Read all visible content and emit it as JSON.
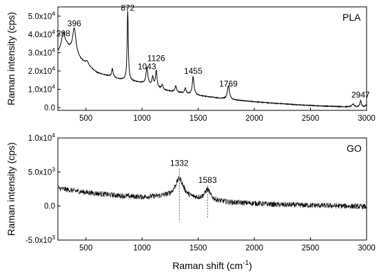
{
  "chart_data": [
    {
      "type": "line",
      "panel_label": "PLA",
      "xlabel": "",
      "ylabel": "Raman intensity (cps)",
      "xlim": [
        250,
        3000
      ],
      "ylim": [
        -1500,
        55000
      ],
      "x_ticks": [
        {
          "value": 500,
          "label": "500"
        },
        {
          "value": 1000,
          "label": "1000"
        },
        {
          "value": 1500,
          "label": "1500"
        },
        {
          "value": 2000,
          "label": "2000"
        },
        {
          "value": 2500,
          "label": "2500"
        },
        {
          "value": 3000,
          "label": "3000"
        }
      ],
      "y_ticks": [
        {
          "value": 0,
          "mant": "0.0",
          "exp": ""
        },
        {
          "value": 10000,
          "mant": "1.0x10",
          "exp": "4"
        },
        {
          "value": 20000,
          "mant": "2.0x10",
          "exp": "4"
        },
        {
          "value": 30000,
          "mant": "3.0x10",
          "exp": "4"
        },
        {
          "value": 40000,
          "mant": "4.0x10",
          "exp": "4"
        },
        {
          "value": 50000,
          "mant": "5.0x10",
          "exp": "4"
        }
      ],
      "baseline": [
        [
          250,
          30000
        ],
        [
          330,
          33000
        ],
        [
          450,
          26000
        ],
        [
          600,
          19000
        ],
        [
          800,
          15500
        ],
        [
          1000,
          13500
        ],
        [
          1200,
          9500
        ],
        [
          1400,
          7500
        ],
        [
          1600,
          5800
        ],
        [
          1800,
          4300
        ],
        [
          2000,
          3200
        ],
        [
          2200,
          2300
        ],
        [
          2400,
          1500
        ],
        [
          2600,
          900
        ],
        [
          2800,
          500
        ],
        [
          3000,
          200
        ]
      ],
      "peaks": [
        {
          "x": 298,
          "h": 9000,
          "w": 18
        },
        {
          "x": 396,
          "h": 14000,
          "w": 18
        },
        {
          "x": 510,
          "h": 2000,
          "w": 15
        },
        {
          "x": 735,
          "h": 4500,
          "w": 8
        },
        {
          "x": 872,
          "h": 38000,
          "w": 6
        },
        {
          "x": 1043,
          "h": 9000,
          "w": 10
        },
        {
          "x": 1095,
          "h": 5000,
          "w": 8
        },
        {
          "x": 1126,
          "h": 9000,
          "w": 8
        },
        {
          "x": 1180,
          "h": 2500,
          "w": 8
        },
        {
          "x": 1300,
          "h": 3500,
          "w": 8
        },
        {
          "x": 1385,
          "h": 3000,
          "w": 8
        },
        {
          "x": 1455,
          "h": 10000,
          "w": 9
        },
        {
          "x": 1769,
          "h": 7500,
          "w": 11
        },
        {
          "x": 2880,
          "h": 1500,
          "w": 12
        },
        {
          "x": 2947,
          "h": 3500,
          "w": 8
        },
        {
          "x": 3000,
          "h": 1500,
          "w": 10
        }
      ],
      "annotations": [
        {
          "label": "298",
          "x": 298,
          "y": 39000
        },
        {
          "label": "396",
          "x": 396,
          "y": 44500
        },
        {
          "label": "872",
          "x": 872,
          "y": 53000
        },
        {
          "label": "1043",
          "x": 1043,
          "y": 21000
        },
        {
          "label": "1126",
          "x": 1126,
          "y": 25500
        },
        {
          "label": "1455",
          "x": 1455,
          "y": 18500
        },
        {
          "label": "1769",
          "x": 1769,
          "y": 11500
        },
        {
          "label": "2947",
          "x": 2947,
          "y": 5500
        }
      ]
    },
    {
      "type": "line",
      "panel_label": "GO",
      "xlabel": "Raman shift (cm",
      "xlabel_sup": "-1",
      "xlabel_end": ")",
      "ylabel": "Raman intensity (cps)",
      "xlim": [
        250,
        3000
      ],
      "ylim": [
        -5000,
        10000
      ],
      "x_ticks": [
        {
          "value": 500,
          "label": "500"
        },
        {
          "value": 1000,
          "label": "1000"
        },
        {
          "value": 1500,
          "label": "1500"
        },
        {
          "value": 2000,
          "label": "2000"
        },
        {
          "value": 2500,
          "label": "2500"
        },
        {
          "value": 3000,
          "label": "3000"
        }
      ],
      "y_ticks": [
        {
          "value": -5000,
          "mant": "-5.0x10",
          "exp": "3"
        },
        {
          "value": 0,
          "mant": "0.0",
          "exp": ""
        },
        {
          "value": 5000,
          "mant": "5.0x10",
          "exp": "3"
        },
        {
          "value": 10000,
          "mant": "1.0x10",
          "exp": "4"
        }
      ],
      "baseline": [
        [
          250,
          2600
        ],
        [
          500,
          2000
        ],
        [
          800,
          1500
        ],
        [
          1000,
          1300
        ],
        [
          1200,
          1400
        ],
        [
          1500,
          1000
        ],
        [
          1800,
          500
        ],
        [
          2000,
          400
        ],
        [
          2200,
          200
        ],
        [
          2500,
          100
        ],
        [
          2800,
          0
        ],
        [
          3000,
          -100
        ]
      ],
      "noise_amplitude": 400,
      "peaks": [
        {
          "x": 1332,
          "h": 2800,
          "w": 45
        },
        {
          "x": 1583,
          "h": 1500,
          "w": 30
        }
      ],
      "markers": [
        {
          "label": "1332",
          "x": 1332,
          "y_top": 5900,
          "y_bottom": -2300
        },
        {
          "label": "1583",
          "x": 1583,
          "y_top": 3400,
          "y_bottom": -1800
        }
      ]
    }
  ]
}
